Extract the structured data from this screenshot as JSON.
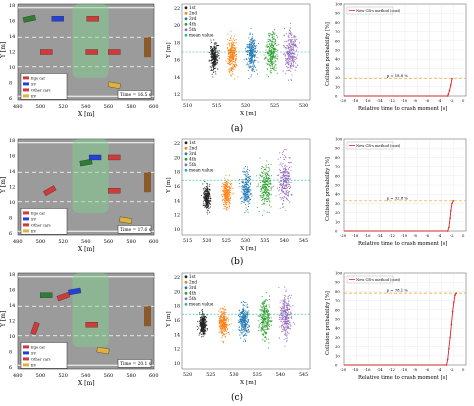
{
  "captions": [
    "(a)",
    "(b)",
    "(c)"
  ],
  "rows": [
    {
      "road": {
        "ylabel": "Y [m]",
        "xlabel": "X [m]",
        "xticks": [
          "480",
          "500",
          "520",
          "540",
          "560",
          "580",
          "600"
        ],
        "yticks": [
          "18",
          "16",
          "14",
          "12",
          "10",
          "8",
          "6"
        ],
        "time_label": "Time = 16.5 s",
        "legend": [
          "Ego car",
          "SV",
          "Other cars",
          "EV"
        ]
      },
      "scatter": {
        "ylabel": "Y [m]",
        "xlabel": "X [m]",
        "xticks": [
          "510",
          "515",
          "520",
          "525",
          "530"
        ],
        "yticks": [
          "12",
          "14",
          "16",
          "18",
          "20",
          "22"
        ],
        "legend": [
          "1st",
          "2nd",
          "3rd",
          "4th",
          "5th",
          "mean value"
        ]
      },
      "prob": {
        "ylabel": "Collision probability [%]",
        "xlabel": "Relative time to crash moment [s]",
        "xticks": [
          "-20",
          "-18",
          "-16",
          "-14",
          "-12",
          "-10",
          "-8",
          "-6",
          "-4",
          "-2",
          "0"
        ],
        "yticks": [
          "0",
          "10",
          "20",
          "30",
          "40",
          "50",
          "60",
          "70",
          "80",
          "90",
          "100"
        ],
        "legend": "New CR-s method (cost)",
        "annotation": "p = 18.8 %"
      }
    },
    {
      "road": {
        "ylabel": "Y [m]",
        "xlabel": "X [m]",
        "xticks": [
          "480",
          "500",
          "520",
          "540",
          "560",
          "580",
          "600"
        ],
        "yticks": [
          "18",
          "16",
          "14",
          "12",
          "10",
          "8",
          "6"
        ],
        "time_label": "Time = 17.6 s",
        "legend": [
          "Ego car",
          "SV",
          "Other cars",
          "EV"
        ]
      },
      "scatter": {
        "ylabel": "Y [m]",
        "xlabel": "X [m]",
        "xticks": [
          "515",
          "520",
          "525",
          "530",
          "535",
          "540",
          "545"
        ],
        "yticks": [
          "10",
          "12",
          "14",
          "16",
          "18",
          "20",
          "22"
        ],
        "legend": [
          "1st",
          "2nd",
          "3rd",
          "4th",
          "5th",
          "mean value"
        ]
      },
      "prob": {
        "ylabel": "Collision probability [%]",
        "xlabel": "Relative time to crash moment [s]",
        "xticks": [
          "-20",
          "-18",
          "-16",
          "-14",
          "-12",
          "-10",
          "-8",
          "-6",
          "-4",
          "-2",
          "0"
        ],
        "yticks": [
          "0",
          "10",
          "20",
          "30",
          "40",
          "50",
          "60",
          "70",
          "80",
          "90",
          "100"
        ],
        "legend": "New CR-s method (cost)",
        "annotation": "p = 32.8 %"
      }
    },
    {
      "road": {
        "ylabel": "Y [m]",
        "xlabel": "X [m]",
        "xticks": [
          "480",
          "500",
          "520",
          "540",
          "560",
          "580",
          "600"
        ],
        "yticks": [
          "18",
          "16",
          "14",
          "12",
          "10",
          "8",
          "6"
        ],
        "time_label": "Time = 20.1 s",
        "legend": [
          "Ego car",
          "SV",
          "Other cars",
          "EV"
        ]
      },
      "scatter": {
        "ylabel": "Y [m]",
        "xlabel": "X [m]",
        "xticks": [
          "520",
          "525",
          "530",
          "535",
          "540",
          "545"
        ],
        "yticks": [
          "10",
          "12",
          "14",
          "16",
          "18",
          "20",
          "22"
        ],
        "legend": [
          "1st",
          "2nd",
          "3rd",
          "4th",
          "5th",
          "mean value"
        ]
      },
      "prob": {
        "ylabel": "Collision probability [%]",
        "xlabel": "Relative time to crash moment [s]",
        "xticks": [
          "-20",
          "-18",
          "-16",
          "-14",
          "-12",
          "-10",
          "-8",
          "-6",
          "-4",
          "-2",
          "0"
        ],
        "yticks": [
          "0",
          "10",
          "20",
          "30",
          "40",
          "50",
          "60",
          "70",
          "80",
          "90",
          "100"
        ],
        "legend": "New CR-s method (cost)",
        "annotation": "p = 78.1 %"
      }
    }
  ],
  "chart_data": [
    {
      "type": "line",
      "xlabel": "Relative time to crash moment [s]",
      "ylabel": "Collision probability [%]",
      "xlim": [
        -20,
        0
      ],
      "ylim": [
        0,
        100
      ],
      "series": [
        {
          "name": "New CR-s method (cost)",
          "x": [
            -20,
            -3.0,
            -2.9,
            -2.7,
            -2.5,
            -2.3
          ],
          "y": [
            0,
            0,
            2,
            6,
            12,
            18.8
          ]
        }
      ],
      "threshold": 18.8
    },
    {
      "type": "line",
      "xlabel": "Relative time to crash moment [s]",
      "ylabel": "Collision probability [%]",
      "xlim": [
        -20,
        0
      ],
      "ylim": [
        0,
        100
      ],
      "series": [
        {
          "name": "New CR-s method (cost)",
          "x": [
            -20,
            -3.0,
            -2.8,
            -2.6,
            -2.5,
            -2.3,
            -2.1
          ],
          "y": [
            0,
            0,
            4,
            14,
            22,
            30,
            32.8
          ]
        }
      ],
      "threshold": 32.8
    },
    {
      "type": "line",
      "xlabel": "Relative time to crash moment [s]",
      "ylabel": "Collision probability [%]",
      "xlim": [
        -20,
        0
      ],
      "ylim": [
        0,
        100
      ],
      "series": [
        {
          "name": "New CR-s method (cost)",
          "x": [
            -20,
            -3.2,
            -3.0,
            -2.8,
            -2.6,
            -2.4,
            -2.2,
            -2.0,
            -1.8,
            -1.6
          ],
          "y": [
            0,
            0,
            6,
            18,
            30,
            44,
            58,
            68,
            76,
            78.1
          ]
        }
      ],
      "threshold": 78.1
    }
  ],
  "scatter_data": [
    {
      "type": "scatter",
      "xlim": [
        505,
        535
      ],
      "ylim": [
        11,
        23
      ],
      "clusters": [
        {
          "name": "1st",
          "color": "#222222",
          "cx": 512.5,
          "cy": 16.5,
          "sx": 0.7,
          "sy": 1.4
        },
        {
          "name": "2nd",
          "color": "#ff7f0e",
          "cx": 516.8,
          "cy": 16.6,
          "sx": 0.9,
          "sy": 1.7
        },
        {
          "name": "3rd",
          "color": "#1f77b4",
          "cx": 521.3,
          "cy": 16.8,
          "sx": 1.0,
          "sy": 1.9
        },
        {
          "name": "4th",
          "color": "#2ca02c",
          "cx": 526.0,
          "cy": 17.0,
          "sx": 1.1,
          "sy": 2.1
        },
        {
          "name": "5th",
          "color": "#9467bd",
          "cx": 530.5,
          "cy": 17.2,
          "sx": 1.2,
          "sy": 2.3
        }
      ],
      "mean_y": 17.0
    },
    {
      "type": "scatter",
      "xlim": [
        512,
        548
      ],
      "ylim": [
        9,
        23
      ],
      "clusters": [
        {
          "name": "1st",
          "color": "#222222",
          "cx": 519.0,
          "cy": 14.5,
          "sx": 0.8,
          "sy": 1.5
        },
        {
          "name": "2nd",
          "color": "#ff7f0e",
          "cx": 524.5,
          "cy": 15.0,
          "sx": 1.0,
          "sy": 1.8
        },
        {
          "name": "3rd",
          "color": "#1f77b4",
          "cx": 530.0,
          "cy": 15.6,
          "sx": 1.2,
          "sy": 2.2
        },
        {
          "name": "4th",
          "color": "#2ca02c",
          "cx": 535.5,
          "cy": 16.2,
          "sx": 1.3,
          "sy": 2.5
        },
        {
          "name": "5th",
          "color": "#9467bd",
          "cx": 541.0,
          "cy": 16.8,
          "sx": 1.4,
          "sy": 2.8
        }
      ],
      "mean_y": 17.0
    },
    {
      "type": "scatter",
      "xlim": [
        516,
        550
      ],
      "ylim": [
        9,
        23
      ],
      "clusters": [
        {
          "name": "1st",
          "color": "#222222",
          "cx": 521.5,
          "cy": 15.5,
          "sx": 0.8,
          "sy": 1.4
        },
        {
          "name": "2nd",
          "color": "#ff7f0e",
          "cx": 527.0,
          "cy": 15.7,
          "sx": 1.0,
          "sy": 1.7
        },
        {
          "name": "3rd",
          "color": "#1f77b4",
          "cx": 532.5,
          "cy": 16.0,
          "sx": 1.1,
          "sy": 2.0
        },
        {
          "name": "4th",
          "color": "#2ca02c",
          "cx": 538.0,
          "cy": 16.2,
          "sx": 1.2,
          "sy": 2.3
        },
        {
          "name": "5th",
          "color": "#9467bd",
          "cx": 543.5,
          "cy": 16.5,
          "sx": 1.3,
          "sy": 2.6
        }
      ],
      "mean_y": 17.0
    }
  ],
  "road_scenes": [
    {
      "cars": [
        {
          "kind": "ego",
          "color": "#2e7d32",
          "x": 490,
          "y": 17.0,
          "angle": -12
        },
        {
          "kind": "sv",
          "color": "#2340d8",
          "x": 515,
          "y": 17.0,
          "angle": 0
        },
        {
          "kind": "other",
          "color": "#d23a3a",
          "x": 546,
          "y": 17.0,
          "angle": 0
        },
        {
          "kind": "other",
          "color": "#d23a3a",
          "x": 505,
          "y": 12.5,
          "angle": 0
        },
        {
          "kind": "other",
          "color": "#d23a3a",
          "x": 545,
          "y": 12.5,
          "angle": 0
        },
        {
          "kind": "other",
          "color": "#d23a3a",
          "x": 565,
          "y": 12.5,
          "angle": 0
        },
        {
          "kind": "ev",
          "color": "#e0b23a",
          "x": 565,
          "y": 8.0,
          "angle": 10
        }
      ]
    },
    {
      "cars": [
        {
          "kind": "ego",
          "color": "#2e7d32",
          "x": 540,
          "y": 15.8,
          "angle": -10
        },
        {
          "kind": "sv",
          "color": "#2340d8",
          "x": 548,
          "y": 16.5,
          "angle": 0
        },
        {
          "kind": "other",
          "color": "#d23a3a",
          "x": 565,
          "y": 16.5,
          "angle": 0
        },
        {
          "kind": "other",
          "color": "#d23a3a",
          "x": 508,
          "y": 12.0,
          "angle": -30
        },
        {
          "kind": "other",
          "color": "#d23a3a",
          "x": 565,
          "y": 12.0,
          "angle": 0
        },
        {
          "kind": "ev",
          "color": "#e0b23a",
          "x": 575,
          "y": 8.0,
          "angle": 10
        }
      ]
    },
    {
      "cars": [
        {
          "kind": "ego",
          "color": "#2e7d32",
          "x": 505,
          "y": 16.0,
          "angle": 0
        },
        {
          "kind": "sv",
          "color": "#2340d8",
          "x": 530,
          "y": 16.5,
          "angle": -10
        },
        {
          "kind": "other",
          "color": "#d23a3a",
          "x": 520,
          "y": 15.8,
          "angle": -20
        },
        {
          "kind": "other",
          "color": "#d23a3a",
          "x": 495,
          "y": 11.5,
          "angle": -70
        },
        {
          "kind": "other",
          "color": "#d23a3a",
          "x": 545,
          "y": 12.0,
          "angle": 0
        },
        {
          "kind": "ev",
          "color": "#e0b23a",
          "x": 555,
          "y": 8.5,
          "angle": 10
        }
      ]
    }
  ]
}
